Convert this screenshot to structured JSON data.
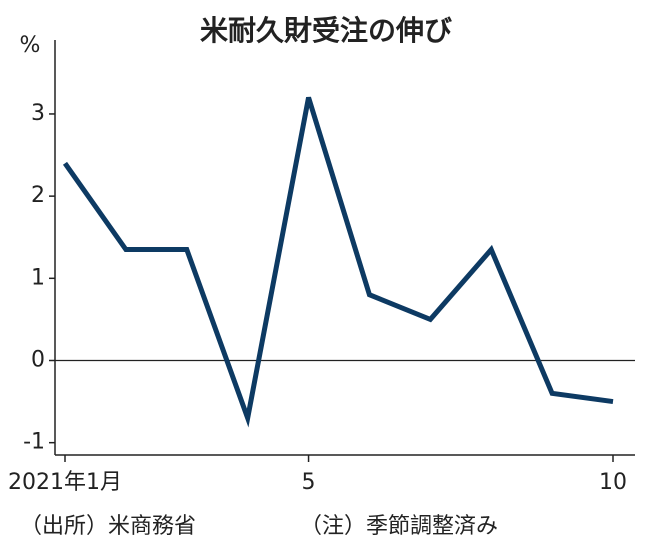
{
  "chart_data": {
    "type": "line",
    "title": "米耐久財受注の伸び",
    "y_unit": "%",
    "categories": [
      "2021年1月",
      null,
      null,
      null,
      "5",
      null,
      null,
      null,
      null,
      "10"
    ],
    "series": [
      {
        "name": "米耐久財受注の伸び",
        "color": "#0d3a63",
        "values": [
          2.4,
          1.35,
          1.35,
          -0.7,
          3.2,
          0.8,
          0.5,
          1.35,
          -0.4,
          -0.5
        ]
      }
    ],
    "ylim": [
      -1.15,
      3.9
    ],
    "yticks": [
      -1,
      0,
      1,
      2,
      3
    ],
    "zero_line": true,
    "source": "（出所）米商務省",
    "note": "（注）季節調整済み"
  }
}
